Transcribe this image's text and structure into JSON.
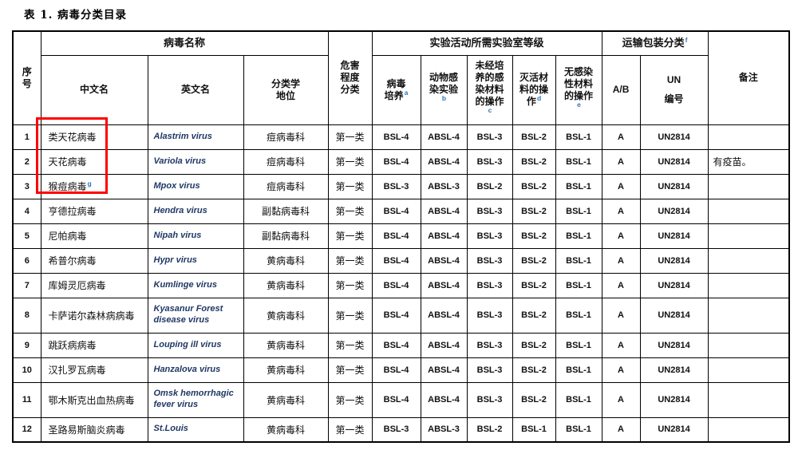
{
  "page": {
    "title": "表 1. 病毒分类目录"
  },
  "table": {
    "header": {
      "no": "序号",
      "virus_name_group": "病毒名称",
      "cn": "中文名",
      "en": "英文名",
      "taxonomy": "分类学地位",
      "hazard": "危害程度分类",
      "lab_group": "实验活动所需实验室等级",
      "lab_cols": [
        {
          "label": "病毒培养",
          "sup": "a"
        },
        {
          "label": "动物感染实验",
          "sup": "b"
        },
        {
          "label": "未经培养的感染材料的操作",
          "sup": "c"
        },
        {
          "label": "灭活材料的操作",
          "sup": "d"
        },
        {
          "label": "无感染性材料的操作",
          "sup": "e"
        }
      ],
      "transport_group": "运输包装分类",
      "transport_sup": "f",
      "ab": "A/B",
      "un_top": "UN",
      "un_bottom": "编号",
      "remark": "备注"
    },
    "rows": [
      {
        "no": "1",
        "cn": "类天花病毒",
        "cn_sup": "",
        "en": "Alastrim virus",
        "family": "痘病毒科",
        "hazard": "第一类",
        "labs": [
          "BSL-4",
          "ABSL-4",
          "BSL-3",
          "BSL-2",
          "BSL-1"
        ],
        "ab": "A",
        "un": "UN2814",
        "remark": ""
      },
      {
        "no": "2",
        "cn": "天花病毒",
        "cn_sup": "",
        "en": "Variola virus",
        "family": "痘病毒科",
        "hazard": "第一类",
        "labs": [
          "BSL-4",
          "ABSL-4",
          "BSL-3",
          "BSL-2",
          "BSL-1"
        ],
        "ab": "A",
        "un": "UN2814",
        "remark": "有疫苗。"
      },
      {
        "no": "3",
        "cn": "猴痘病毒",
        "cn_sup": "g",
        "en": "Mpox virus",
        "family": "痘病毒科",
        "hazard": "第一类",
        "labs": [
          "BSL-3",
          "ABSL-3",
          "BSL-2",
          "BSL-2",
          "BSL-1"
        ],
        "ab": "A",
        "un": "UN2814",
        "remark": ""
      },
      {
        "no": "4",
        "cn": "亨德拉病毒",
        "cn_sup": "",
        "en": "Hendra virus",
        "family": "副黏病毒科",
        "hazard": "第一类",
        "labs": [
          "BSL-4",
          "ABSL-4",
          "BSL-3",
          "BSL-2",
          "BSL-1"
        ],
        "ab": "A",
        "un": "UN2814",
        "remark": ""
      },
      {
        "no": "5",
        "cn": "尼帕病毒",
        "cn_sup": "",
        "en": "Nipah virus",
        "family": "副黏病毒科",
        "hazard": "第一类",
        "labs": [
          "BSL-4",
          "ABSL-4",
          "BSL-3",
          "BSL-2",
          "BSL-1"
        ],
        "ab": "A",
        "un": "UN2814",
        "remark": ""
      },
      {
        "no": "6",
        "cn": "希普尔病毒",
        "cn_sup": "",
        "en": "Hypr virus",
        "family": "黄病毒科",
        "hazard": "第一类",
        "labs": [
          "BSL-4",
          "ABSL-4",
          "BSL-3",
          "BSL-2",
          "BSL-1"
        ],
        "ab": "A",
        "un": "UN2814",
        "remark": ""
      },
      {
        "no": "7",
        "cn": "库姆灵厄病毒",
        "cn_sup": "",
        "en": "Kumlinge virus",
        "family": "黄病毒科",
        "hazard": "第一类",
        "labs": [
          "BSL-4",
          "ABSL-4",
          "BSL-3",
          "BSL-2",
          "BSL-1"
        ],
        "ab": "A",
        "un": "UN2814",
        "remark": ""
      },
      {
        "no": "8",
        "cn": "卡萨诺尔森林病病毒",
        "cn_sup": "",
        "en": "Kyasanur Forest disease virus",
        "family": "黄病毒科",
        "hazard": "第一类",
        "labs": [
          "BSL-4",
          "ABSL-4",
          "BSL-3",
          "BSL-2",
          "BSL-1"
        ],
        "ab": "A",
        "un": "UN2814",
        "remark": ""
      },
      {
        "no": "9",
        "cn": "跳跃病病毒",
        "cn_sup": "",
        "en": "Louping ill virus",
        "family": "黄病毒科",
        "hazard": "第一类",
        "labs": [
          "BSL-4",
          "ABSL-4",
          "BSL-3",
          "BSL-2",
          "BSL-1"
        ],
        "ab": "A",
        "un": "UN2814",
        "remark": ""
      },
      {
        "no": "10",
        "cn": "汉扎罗瓦病毒",
        "cn_sup": "",
        "en": "Hanzalova virus",
        "family": "黄病毒科",
        "hazard": "第一类",
        "labs": [
          "BSL-4",
          "ABSL-4",
          "BSL-3",
          "BSL-2",
          "BSL-1"
        ],
        "ab": "A",
        "un": "UN2814",
        "remark": ""
      },
      {
        "no": "11",
        "cn": "鄂木斯克出血热病毒",
        "cn_sup": "",
        "en": "Omsk hemorrhagic fever virus",
        "family": "黄病毒科",
        "hazard": "第一类",
        "labs": [
          "BSL-4",
          "ABSL-4",
          "BSL-3",
          "BSL-2",
          "BSL-1"
        ],
        "ab": "A",
        "un": "UN2814",
        "remark": ""
      },
      {
        "no": "12",
        "cn": "圣路易斯脑炎病毒",
        "cn_sup": "",
        "en": "St.Louis",
        "family": "黄病毒科",
        "hazard": "第一类",
        "labs": [
          "BSL-3",
          "ABSL-3",
          "BSL-2",
          "BSL-1",
          "BSL-1"
        ],
        "ab": "A",
        "un": "UN2814",
        "remark": ""
      }
    ]
  },
  "annotation": {
    "type": "highlight-box",
    "color": "#ff0000",
    "marked_rows": [
      "类天花病毒",
      "天花病毒",
      "猴痘病毒"
    ]
  }
}
